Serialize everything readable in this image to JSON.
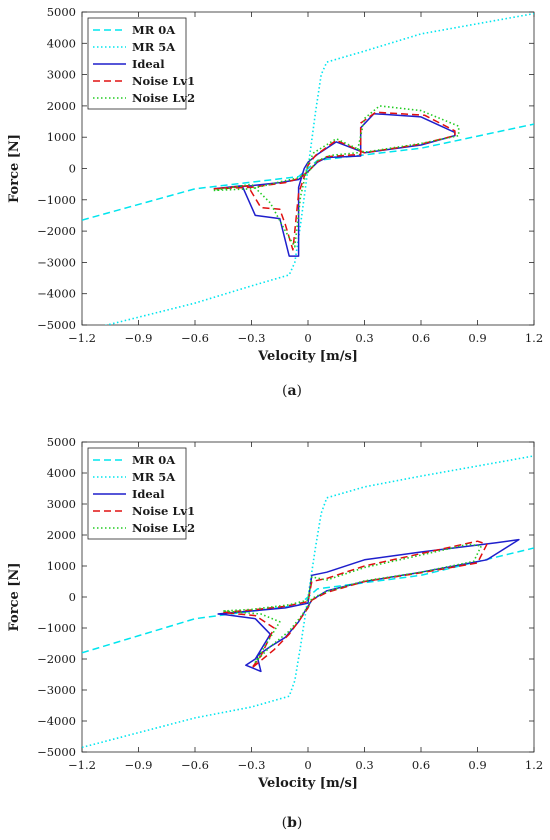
{
  "chart_data": [
    {
      "type": "line",
      "caption": "(a)",
      "caption_letter": "a",
      "xlabel": "Velocity [m/s]",
      "ylabel": "Force [N]",
      "xlim": [
        -1.2,
        1.2
      ],
      "ylim": [
        -5000,
        5000
      ],
      "xticks": [
        -1.2,
        -0.9,
        -0.6,
        -0.3,
        0,
        0.3,
        0.6,
        0.9,
        1.2
      ],
      "xtick_labels": [
        "−1.2",
        "−0.9",
        "−0.6",
        "−0.3",
        "0",
        "0.3",
        "0.6",
        "0.9",
        "1.2"
      ],
      "yticks": [
        -5000,
        -4000,
        -3000,
        -2000,
        -1000,
        0,
        1000,
        2000,
        3000,
        4000,
        5000
      ],
      "ytick_labels": [
        "−5000",
        "−4000",
        "−3000",
        "−2000",
        "−1000",
        "0",
        "1000",
        "2000",
        "3000",
        "4000",
        "5000"
      ],
      "grid": false,
      "legend_position": "top-left",
      "series": [
        {
          "name": "MR 0A",
          "color": "#00e5ee",
          "style": "dashed",
          "x": [
            -1.2,
            -0.6,
            -0.05,
            0,
            0.05,
            0.6,
            1.2
          ],
          "y": [
            -1650,
            -650,
            -260,
            0,
            260,
            650,
            1420
          ]
        },
        {
          "name": "MR 5A",
          "color": "#00e5ee",
          "style": "dotted",
          "x": [
            -1.2,
            -0.6,
            -0.3,
            -0.1,
            -0.07,
            -0.04,
            0,
            0.04,
            0.07,
            0.1,
            0.3,
            0.6,
            1.2
          ],
          "y": [
            -5200,
            -4300,
            -3750,
            -3400,
            -3000,
            -1800,
            0,
            1800,
            3000,
            3400,
            3750,
            4300,
            4950
          ]
        },
        {
          "name": "Ideal",
          "color": "#1f1fcc",
          "style": "solid",
          "x": [
            -0.5,
            -0.3,
            -0.15,
            -0.05,
            0,
            0.05,
            0.1,
            0.28,
            0.28,
            0.35,
            0.6,
            0.78,
            0.78,
            0.6,
            0.3,
            0.15,
            0.05,
            0,
            -0.02,
            -0.05,
            -0.05,
            -0.1,
            -0.15,
            -0.28,
            -0.35,
            -0.5
          ],
          "y": [
            -650,
            -550,
            -450,
            -350,
            -100,
            200,
            350,
            400,
            1300,
            1750,
            1650,
            1150,
            1050,
            750,
            500,
            850,
            450,
            200,
            0,
            -600,
            -2800,
            -2800,
            -1600,
            -1500,
            -550,
            -650
          ]
        },
        {
          "name": "Noise Lv1",
          "color": "#e01010",
          "style": "dashed",
          "x": [
            -0.5,
            -0.3,
            -0.12,
            -0.05,
            0,
            0.05,
            0.1,
            0.28,
            0.28,
            0.36,
            0.62,
            0.78,
            0.78,
            0.6,
            0.3,
            0.15,
            0.04,
            0,
            -0.05,
            -0.08,
            -0.12,
            -0.15,
            -0.25,
            -0.32,
            -0.5
          ],
          "y": [
            -650,
            -600,
            -450,
            -320,
            -100,
            220,
            380,
            450,
            1450,
            1800,
            1700,
            1200,
            1050,
            780,
            500,
            900,
            420,
            100,
            -800,
            -2600,
            -1800,
            -1300,
            -1250,
            -550,
            -650
          ]
        },
        {
          "name": "Noise Lv2",
          "color": "#22cc22",
          "style": "dotted",
          "x": [
            -0.5,
            -0.3,
            -0.13,
            -0.05,
            0,
            0.05,
            0.12,
            0.26,
            0.3,
            0.38,
            0.6,
            0.8,
            0.8,
            0.6,
            0.3,
            0.15,
            0.03,
            0,
            -0.04,
            -0.07,
            -0.12,
            -0.2,
            -0.3,
            -0.5
          ],
          "y": [
            -700,
            -650,
            -400,
            -300,
            -120,
            250,
            420,
            500,
            1600,
            2000,
            1850,
            1350,
            1050,
            800,
            520,
            950,
            500,
            150,
            -900,
            -2500,
            -2000,
            -1100,
            -500,
            -700
          ]
        }
      ]
    },
    {
      "type": "line",
      "caption": "(b)",
      "caption_letter": "b",
      "xlabel": "Velocity [m/s]",
      "ylabel": "Force [N]",
      "xlim": [
        -1.2,
        1.2
      ],
      "ylim": [
        -5000,
        5000
      ],
      "xticks": [
        -1.2,
        -0.9,
        -0.6,
        -0.3,
        0,
        0.3,
        0.6,
        0.9,
        1.2
      ],
      "xtick_labels": [
        "−1.2",
        "−0.9",
        "−0.6",
        "−0.3",
        "0",
        "0.3",
        "0.6",
        "0.9",
        "1.2"
      ],
      "yticks": [
        -5000,
        -4000,
        -3000,
        -2000,
        -1000,
        0,
        1000,
        2000,
        3000,
        4000,
        5000
      ],
      "ytick_labels": [
        "−5000",
        "−4000",
        "−3000",
        "−2000",
        "−1000",
        "0",
        "1000",
        "2000",
        "3000",
        "4000",
        "5000"
      ],
      "grid": false,
      "legend_position": "top-left",
      "series": [
        {
          "name": "MR 0A",
          "color": "#00e5ee",
          "style": "dashed",
          "x": [
            -1.2,
            -0.6,
            -0.05,
            0,
            0.05,
            0.6,
            1.2
          ],
          "y": [
            -1800,
            -700,
            -260,
            0,
            260,
            700,
            1580
          ]
        },
        {
          "name": "MR 5A",
          "color": "#00e5ee",
          "style": "dotted",
          "x": [
            -1.2,
            -0.6,
            -0.3,
            -0.1,
            -0.07,
            -0.04,
            0,
            0.04,
            0.07,
            0.1,
            0.3,
            0.6,
            1.2
          ],
          "y": [
            -4850,
            -3900,
            -3550,
            -3200,
            -2700,
            -1600,
            0,
            1600,
            2700,
            3200,
            3550,
            3900,
            4550
          ]
        },
        {
          "name": "Ideal",
          "color": "#1f1fcc",
          "style": "solid",
          "x": [
            -0.48,
            -0.3,
            -0.12,
            0,
            0.02,
            0.1,
            0.3,
            0.6,
            1.0,
            1.12,
            0.95,
            0.6,
            0.3,
            0.1,
            0.02,
            0,
            -0.02,
            -0.05,
            -0.12,
            -0.2,
            -0.27,
            -0.25,
            -0.33,
            -0.28,
            -0.2,
            -0.28,
            -0.45,
            -0.48
          ],
          "y": [
            -550,
            -450,
            -350,
            -200,
            700,
            800,
            1200,
            1450,
            1750,
            1850,
            1200,
            800,
            500,
            200,
            -100,
            -300,
            -500,
            -800,
            -1300,
            -1600,
            -1900,
            -2400,
            -2200,
            -2000,
            -1200,
            -700,
            -560,
            -550
          ]
        },
        {
          "name": "Noise Lv1",
          "color": "#e01010",
          "style": "dashed",
          "x": [
            -0.45,
            -0.3,
            -0.12,
            0,
            0.02,
            0.1,
            0.3,
            0.6,
            0.9,
            0.95,
            0.9,
            0.6,
            0.3,
            0.1,
            0.02,
            0,
            -0.04,
            -0.1,
            -0.18,
            -0.3,
            -0.25,
            -0.18,
            -0.28,
            -0.45
          ],
          "y": [
            -500,
            -420,
            -300,
            -150,
            500,
            600,
            1000,
            1400,
            1800,
            1700,
            1100,
            780,
            500,
            150,
            -100,
            -350,
            -700,
            -1200,
            -1700,
            -2300,
            -1900,
            -1000,
            -600,
            -500
          ]
        },
        {
          "name": "Noise Lv2",
          "color": "#22cc22",
          "style": "dotted",
          "x": [
            -0.45,
            -0.3,
            -0.1,
            0,
            0.02,
            0.1,
            0.3,
            0.6,
            0.85,
            0.92,
            0.88,
            0.6,
            0.3,
            0.1,
            0.02,
            0,
            -0.04,
            -0.1,
            -0.2,
            -0.28,
            -0.22,
            -0.15,
            -0.25,
            -0.45
          ],
          "y": [
            -450,
            -400,
            -250,
            -100,
            650,
            550,
            950,
            1350,
            1700,
            1650,
            1150,
            800,
            520,
            180,
            -50,
            -300,
            -650,
            -1100,
            -1600,
            -2100,
            -1500,
            -800,
            -550,
            -450
          ]
        }
      ]
    }
  ]
}
